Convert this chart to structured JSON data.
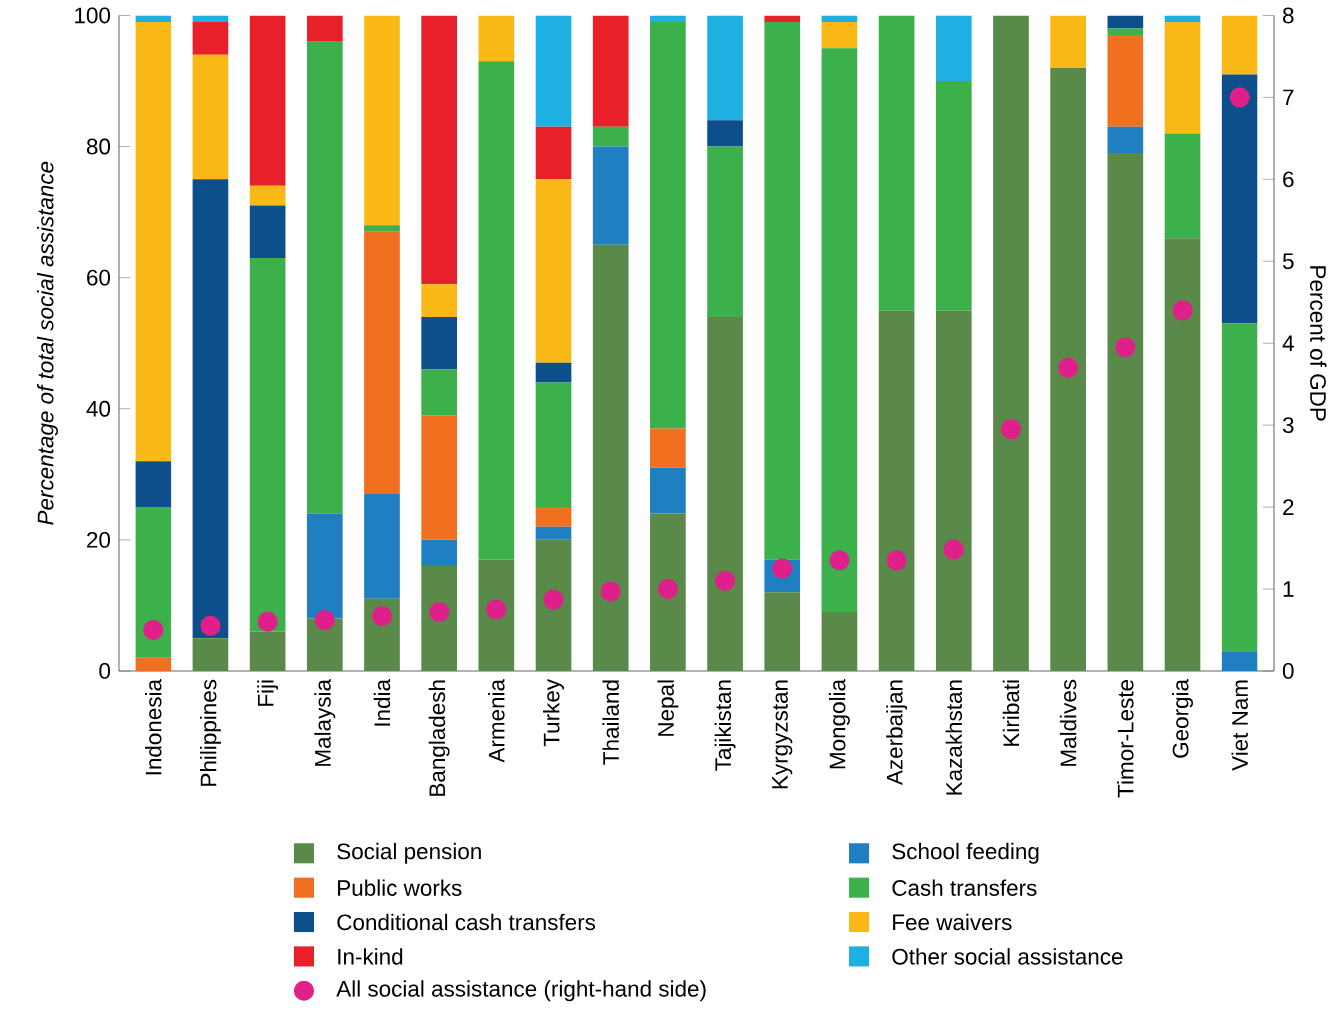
{
  "chart_data": {
    "type": "bar",
    "stacked": true,
    "categories": [
      "Indonesia",
      "Philippines",
      "Fiji",
      "Malaysia",
      "India",
      "Bangladesh",
      "Armenia",
      "Turkey",
      "Thailand",
      "Nepal",
      "Tajikistan",
      "Kyrgyzstan",
      "Mongolia",
      "Azerbaijan",
      "Kazakhstan",
      "Kiribati",
      "Maldives",
      "Timor-Leste",
      "Georgia",
      "Viet Nam"
    ],
    "ylabel": "Percentage of total social assistance",
    "y2label": "Percent of GDP",
    "ylim": [
      0,
      100
    ],
    "yticks": [
      0,
      20,
      40,
      60,
      80,
      100
    ],
    "y2lim": [
      0,
      8
    ],
    "y2ticks": [
      0,
      1,
      2,
      3,
      4,
      5,
      6,
      7,
      8
    ],
    "legend": "bottom",
    "marker": "circle",
    "series": [
      {
        "name": "Social pension",
        "color": "#5a8a4a",
        "values": [
          0,
          5,
          6,
          8,
          11,
          16,
          17,
          20,
          65,
          24,
          54,
          12,
          9,
          55,
          55,
          100,
          92,
          79,
          66,
          0
        ]
      },
      {
        "name": "School feeding",
        "color": "#1f7fc0",
        "values": [
          0,
          0,
          0,
          16,
          16,
          4,
          0,
          2,
          15,
          7,
          0,
          5,
          0,
          0,
          0,
          0,
          0,
          4,
          0,
          3
        ]
      },
      {
        "name": "Public works",
        "color": "#f07020",
        "values": [
          2,
          0,
          0,
          0,
          40,
          19,
          0,
          3,
          0,
          6,
          0,
          0,
          0,
          0,
          0,
          0,
          0,
          14,
          0,
          0
        ]
      },
      {
        "name": "Cash transfers",
        "color": "#3cb04a",
        "values": [
          23,
          0,
          57,
          72,
          1,
          7,
          76,
          19,
          3,
          62,
          26,
          82,
          86,
          45,
          35,
          0,
          0,
          1,
          16,
          50
        ]
      },
      {
        "name": "Conditional cash transfers",
        "color": "#0d4f8b",
        "values": [
          7,
          70,
          8,
          0,
          0,
          8,
          0,
          3,
          0,
          0,
          4,
          0,
          0,
          0,
          0,
          0,
          0,
          2,
          0,
          38
        ]
      },
      {
        "name": "Fee waivers",
        "color": "#fbb917",
        "values": [
          67,
          19,
          3,
          0,
          32,
          5,
          7,
          28,
          0,
          0,
          0,
          0,
          4,
          0,
          0,
          0,
          8,
          0,
          17,
          9
        ]
      },
      {
        "name": "In-kind",
        "color": "#e8202a",
        "values": [
          0,
          5,
          26,
          4,
          0,
          41,
          0,
          8,
          17,
          0,
          0,
          1,
          0,
          0,
          0,
          0,
          0,
          0,
          0,
          0
        ]
      },
      {
        "name": "Other social assistance",
        "color": "#1eb0e0",
        "values": [
          1,
          1,
          0,
          0,
          0,
          0,
          0,
          17,
          0,
          1,
          16,
          0,
          1,
          0,
          10,
          0,
          0,
          0,
          1,
          0
        ]
      },
      {
        "name": "All social assistance (right-hand side)",
        "type": "scatter",
        "axis": "y2",
        "color": "#e0208a",
        "values": [
          0.5,
          0.55,
          0.6,
          0.62,
          0.67,
          0.72,
          0.75,
          0.87,
          0.97,
          1.0,
          1.1,
          1.25,
          1.35,
          1.35,
          1.48,
          2.95,
          3.7,
          3.95,
          4.4,
          7.0
        ]
      }
    ]
  }
}
